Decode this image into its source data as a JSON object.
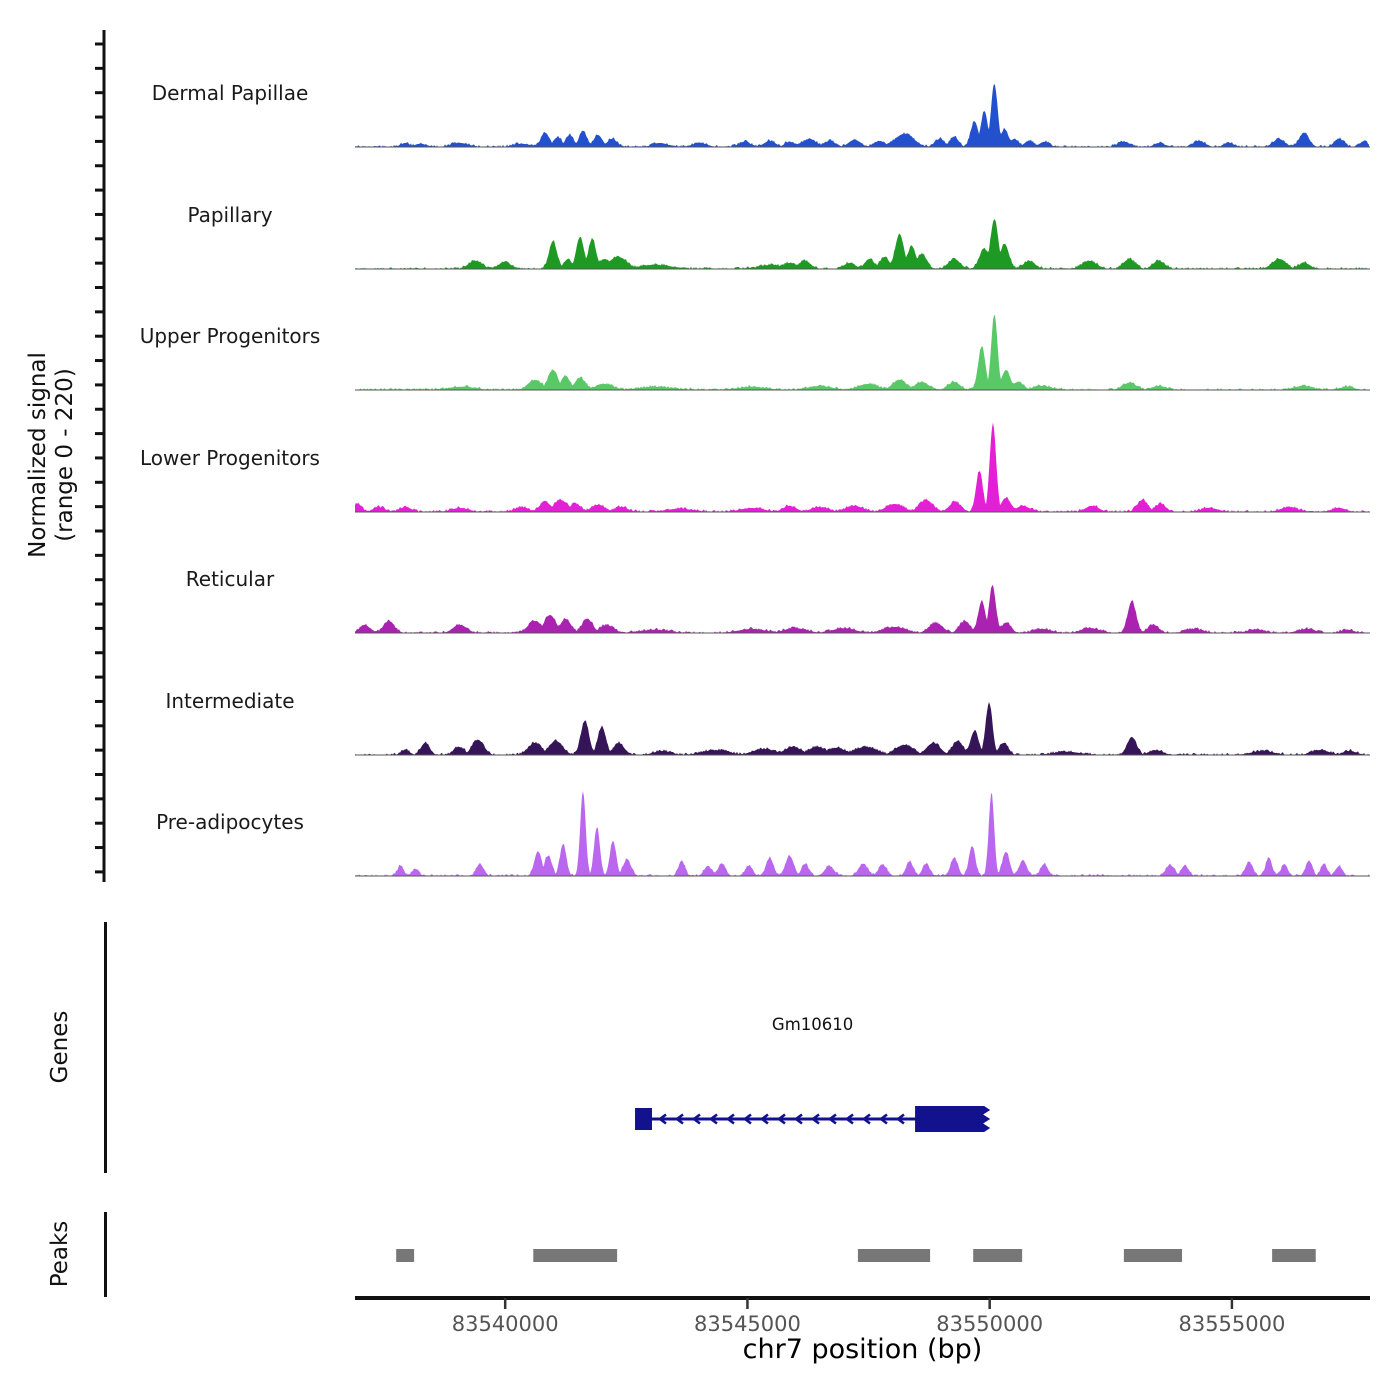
{
  "chart_data": {
    "type": "area",
    "title": "",
    "xlabel": "chr7 position (bp)",
    "ylabel_line1": "Normalized signal",
    "ylabel_line2": "(range 0 - 220)",
    "y_range": [
      0,
      220
    ],
    "x_axis": {
      "min": 83536900,
      "max": 83557850,
      "ticks": [
        83540000,
        83545000,
        83550000,
        83555000
      ],
      "tick_labels": [
        "83540000",
        "83545000",
        "83550000",
        "83555000"
      ],
      "grid": false
    },
    "legend_position": "none",
    "tracks": [
      {
        "name": "Dermal Papillae",
        "color": "#2351cd",
        "peaks": [
          [
            83537940,
            10,
            90
          ],
          [
            83538250,
            8,
            120
          ],
          [
            83539070,
            10,
            180
          ],
          [
            83540350,
            8,
            180
          ],
          [
            83540830,
            35,
            90
          ],
          [
            83541090,
            25,
            80
          ],
          [
            83541340,
            30,
            80
          ],
          [
            83541610,
            40,
            80
          ],
          [
            83541920,
            30,
            90
          ],
          [
            83542210,
            20,
            100
          ],
          [
            83543200,
            10,
            150
          ],
          [
            83544020,
            10,
            150
          ],
          [
            83544950,
            13,
            120
          ],
          [
            83545470,
            15,
            120
          ],
          [
            83545880,
            13,
            100
          ],
          [
            83546290,
            20,
            140
          ],
          [
            83546710,
            15,
            120
          ],
          [
            83547220,
            18,
            120
          ],
          [
            83547740,
            15,
            120
          ],
          [
            83548250,
            33,
            190
          ],
          [
            83548980,
            20,
            100
          ],
          [
            83549280,
            25,
            90
          ],
          [
            83549700,
            63,
            80
          ],
          [
            83549900,
            88,
            70
          ],
          [
            83550110,
            155,
            70
          ],
          [
            83550320,
            45,
            80
          ],
          [
            83550520,
            20,
            90
          ],
          [
            83550830,
            15,
            100
          ],
          [
            83551140,
            13,
            100
          ],
          [
            83552790,
            13,
            120
          ],
          [
            83553510,
            10,
            100
          ],
          [
            83554340,
            15,
            120
          ],
          [
            83554960,
            10,
            100
          ],
          [
            83555990,
            20,
            120
          ],
          [
            83556510,
            35,
            100
          ],
          [
            83557230,
            20,
            100
          ],
          [
            83557740,
            13,
            90
          ]
        ]
      },
      {
        "name": "Papillary",
        "color": "#1e9a24",
        "peaks": [
          [
            83539380,
            20,
            140
          ],
          [
            83540000,
            15,
            140
          ],
          [
            83540990,
            70,
            80
          ],
          [
            83541300,
            25,
            80
          ],
          [
            83541550,
            80,
            80
          ],
          [
            83541800,
            75,
            80
          ],
          [
            83542060,
            25,
            120
          ],
          [
            83542330,
            30,
            180
          ],
          [
            83543100,
            10,
            350
          ],
          [
            83545500,
            10,
            250
          ],
          [
            83545880,
            15,
            140
          ],
          [
            83546190,
            20,
            120
          ],
          [
            83547120,
            15,
            120
          ],
          [
            83547530,
            25,
            100
          ],
          [
            83547840,
            30,
            100
          ],
          [
            83548150,
            87,
            90
          ],
          [
            83548400,
            55,
            90
          ],
          [
            83548610,
            38,
            100
          ],
          [
            83549280,
            25,
            120
          ],
          [
            83549900,
            50,
            100
          ],
          [
            83550110,
            125,
            80
          ],
          [
            83550320,
            63,
            90
          ],
          [
            83550830,
            20,
            120
          ],
          [
            83552070,
            20,
            150
          ],
          [
            83552900,
            25,
            120
          ],
          [
            83553510,
            20,
            120
          ],
          [
            83555990,
            25,
            140
          ],
          [
            83556510,
            15,
            120
          ]
        ]
      },
      {
        "name": "Upper Progenitors",
        "color": "#58c966",
        "peaks": [
          [
            83539100,
            8,
            280
          ],
          [
            83540620,
            25,
            140
          ],
          [
            83540990,
            50,
            100
          ],
          [
            83541250,
            35,
            90
          ],
          [
            83541550,
            30,
            110
          ],
          [
            83542050,
            15,
            180
          ],
          [
            83543100,
            8,
            350
          ],
          [
            83545100,
            8,
            280
          ],
          [
            83546500,
            10,
            240
          ],
          [
            83547500,
            15,
            200
          ],
          [
            83548150,
            25,
            140
          ],
          [
            83548610,
            20,
            140
          ],
          [
            83549280,
            20,
            120
          ],
          [
            83549850,
            108,
            75
          ],
          [
            83550110,
            188,
            65
          ],
          [
            83550350,
            50,
            90
          ],
          [
            83550600,
            20,
            110
          ],
          [
            83551100,
            10,
            180
          ],
          [
            83552900,
            18,
            140
          ],
          [
            83553510,
            10,
            140
          ],
          [
            83556500,
            10,
            180
          ],
          [
            83557400,
            8,
            140
          ]
        ]
      },
      {
        "name": "Lower Progenitors",
        "color": "#e320d6",
        "peaks": [
          [
            83536950,
            20,
            90
          ],
          [
            83537400,
            12,
            120
          ],
          [
            83537940,
            12,
            130
          ],
          [
            83539070,
            10,
            180
          ],
          [
            83540350,
            12,
            140
          ],
          [
            83540830,
            25,
            120
          ],
          [
            83541150,
            30,
            140
          ],
          [
            83541450,
            20,
            120
          ],
          [
            83541920,
            18,
            140
          ],
          [
            83542400,
            12,
            140
          ],
          [
            83543600,
            8,
            280
          ],
          [
            83545100,
            10,
            240
          ],
          [
            83545880,
            15,
            140
          ],
          [
            83546500,
            12,
            180
          ],
          [
            83547220,
            15,
            180
          ],
          [
            83548050,
            20,
            180
          ],
          [
            83548700,
            30,
            140
          ],
          [
            83549300,
            25,
            120
          ],
          [
            83549800,
            102,
            70
          ],
          [
            83550080,
            220,
            65
          ],
          [
            83550350,
            35,
            100
          ],
          [
            83550700,
            15,
            140
          ],
          [
            83552130,
            15,
            140
          ],
          [
            83553170,
            30,
            110
          ],
          [
            83553540,
            20,
            110
          ],
          [
            83554550,
            10,
            180
          ],
          [
            83556200,
            12,
            180
          ],
          [
            83557230,
            10,
            140
          ]
        ]
      },
      {
        "name": "Reticular",
        "color": "#aa22b0",
        "peaks": [
          [
            83537100,
            20,
            110
          ],
          [
            83537600,
            30,
            110
          ],
          [
            83539070,
            20,
            140
          ],
          [
            83540620,
            30,
            140
          ],
          [
            83540930,
            45,
            120
          ],
          [
            83541250,
            35,
            110
          ],
          [
            83541700,
            35,
            110
          ],
          [
            83542100,
            20,
            140
          ],
          [
            83543100,
            8,
            280
          ],
          [
            83545100,
            10,
            280
          ],
          [
            83546000,
            12,
            230
          ],
          [
            83547000,
            12,
            230
          ],
          [
            83548050,
            15,
            230
          ],
          [
            83548900,
            25,
            140
          ],
          [
            83549500,
            30,
            110
          ],
          [
            83549850,
            80,
            75
          ],
          [
            83550070,
            118,
            70
          ],
          [
            83550350,
            25,
            100
          ],
          [
            83551100,
            10,
            180
          ],
          [
            83552100,
            12,
            180
          ],
          [
            83552950,
            80,
            85
          ],
          [
            83553400,
            20,
            110
          ],
          [
            83554250,
            10,
            180
          ],
          [
            83555500,
            8,
            180
          ],
          [
            83556560,
            10,
            180
          ],
          [
            83557400,
            8,
            140
          ]
        ]
      },
      {
        "name": "Intermediate",
        "color": "#351457",
        "peaks": [
          [
            83537940,
            12,
            90
          ],
          [
            83538350,
            30,
            90
          ],
          [
            83539050,
            20,
            110
          ],
          [
            83539440,
            38,
            120
          ],
          [
            83540620,
            30,
            140
          ],
          [
            83541050,
            35,
            140
          ],
          [
            83541650,
            85,
            85
          ],
          [
            83542000,
            70,
            85
          ],
          [
            83542350,
            30,
            110
          ],
          [
            83543250,
            10,
            180
          ],
          [
            83544350,
            12,
            280
          ],
          [
            83545350,
            15,
            230
          ],
          [
            83545950,
            20,
            180
          ],
          [
            83546450,
            20,
            180
          ],
          [
            83546850,
            18,
            180
          ],
          [
            83547450,
            20,
            230
          ],
          [
            83548250,
            25,
            180
          ],
          [
            83548850,
            30,
            140
          ],
          [
            83549350,
            35,
            110
          ],
          [
            83549700,
            60,
            85
          ],
          [
            83550000,
            130,
            70
          ],
          [
            83550300,
            30,
            95
          ],
          [
            83551600,
            8,
            280
          ],
          [
            83552950,
            45,
            95
          ],
          [
            83553450,
            12,
            140
          ],
          [
            83555650,
            10,
            230
          ],
          [
            83556850,
            12,
            180
          ],
          [
            83557450,
            10,
            140
          ]
        ]
      },
      {
        "name": "Pre-adipocytes",
        "color": "#bb66ee",
        "peaks": [
          [
            83537840,
            25,
            65
          ],
          [
            83538150,
            18,
            65
          ],
          [
            83539480,
            30,
            75
          ],
          [
            83540680,
            62,
            75
          ],
          [
            83540890,
            50,
            75
          ],
          [
            83541200,
            80,
            65
          ],
          [
            83541610,
            212,
            55
          ],
          [
            83541900,
            122,
            60
          ],
          [
            83542230,
            88,
            65
          ],
          [
            83542520,
            40,
            85
          ],
          [
            83543650,
            38,
            65
          ],
          [
            83544190,
            25,
            75
          ],
          [
            83544480,
            30,
            75
          ],
          [
            83545040,
            25,
            75
          ],
          [
            83545470,
            45,
            75
          ],
          [
            83545880,
            50,
            85
          ],
          [
            83546200,
            30,
            75
          ],
          [
            83546700,
            25,
            95
          ],
          [
            83547400,
            30,
            95
          ],
          [
            83547800,
            28,
            85
          ],
          [
            83548360,
            35,
            75
          ],
          [
            83548700,
            30,
            75
          ],
          [
            83549280,
            45,
            75
          ],
          [
            83549650,
            75,
            65
          ],
          [
            83550050,
            207,
            55
          ],
          [
            83550350,
            60,
            75
          ],
          [
            83550700,
            40,
            75
          ],
          [
            83551140,
            30,
            75
          ],
          [
            83553740,
            28,
            85
          ],
          [
            83554050,
            25,
            75
          ],
          [
            83555370,
            35,
            75
          ],
          [
            83555780,
            45,
            65
          ],
          [
            83556100,
            30,
            65
          ],
          [
            83556610,
            38,
            65
          ],
          [
            83556920,
            30,
            65
          ],
          [
            83557230,
            25,
            65
          ]
        ]
      }
    ],
    "genes_track": {
      "label": "Genes",
      "gene": {
        "name": "Gm10610",
        "start": 83542680,
        "end": 83550010,
        "strand": "-",
        "left_exon": [
          83542680,
          83543030
        ],
        "right_exon": [
          83548460,
          83550010
        ],
        "color": "#12128e"
      }
    },
    "peaks_track": {
      "label": "Peaks",
      "color": "#777777",
      "intervals": [
        [
          83537750,
          83538120
        ],
        [
          83540580,
          83542310
        ],
        [
          83547280,
          83548770
        ],
        [
          83549660,
          83550670
        ],
        [
          83552770,
          83553970
        ],
        [
          83555830,
          83556730
        ]
      ]
    }
  }
}
